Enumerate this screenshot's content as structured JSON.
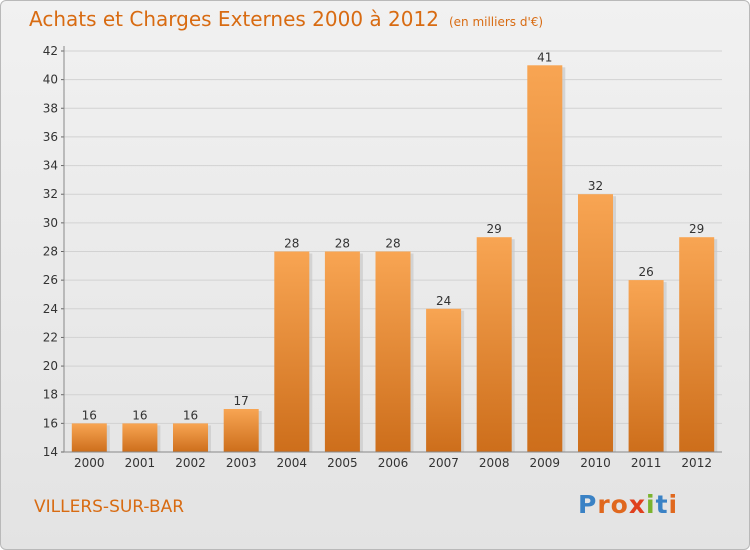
{
  "header": {
    "title": "Achats et Charges Externes 2000 à 2012",
    "unit": "(en milliers d'€)"
  },
  "footer": {
    "commune": "VILLERS-SUR-BAR",
    "logo_letters": [
      "P",
      "r",
      "o",
      "x",
      "i",
      "t",
      "i"
    ],
    "logo_colors": [
      "#3a82c5",
      "#e0681e",
      "#e0681e",
      "#e0401e",
      "#7bb32e",
      "#3a82c5",
      "#e0681e"
    ]
  },
  "chart_data": {
    "type": "bar",
    "title": "Achats et Charges Externes 2000 à 2012",
    "subtitle": "(en milliers d'€)",
    "xlabel": "",
    "ylabel": "",
    "categories": [
      "2000",
      "2001",
      "2002",
      "2003",
      "2004",
      "2005",
      "2006",
      "2007",
      "2008",
      "2009",
      "2010",
      "2011",
      "2012"
    ],
    "values": [
      16,
      16,
      16,
      17,
      28,
      28,
      28,
      24,
      29,
      41,
      32,
      26,
      29
    ],
    "ylim": [
      14,
      42
    ],
    "yticks": [
      14,
      16,
      18,
      20,
      22,
      24,
      26,
      28,
      30,
      32,
      34,
      36,
      38,
      40,
      42
    ],
    "grid": true,
    "bar_color_top": "#f8a553",
    "bar_color_bottom": "#cd6e1b"
  }
}
